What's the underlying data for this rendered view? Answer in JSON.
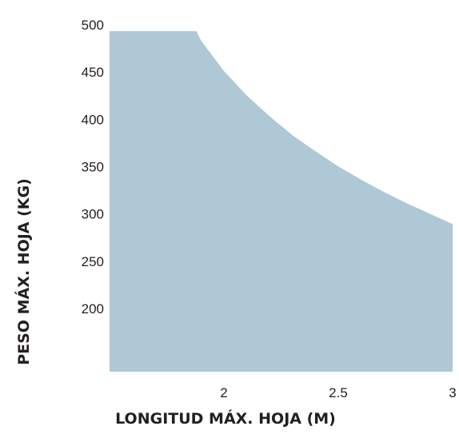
{
  "chart_data": {
    "type": "area",
    "title": "",
    "xlabel": "LONGITUD MÁX. HOJA (M)",
    "ylabel": "PESO MÁX. HOJA (KG)",
    "xlim": [
      1.5,
      3.0
    ],
    "ylim": [
      145,
      500
    ],
    "x_ticks": [
      2,
      2.5,
      3
    ],
    "x_tick_labels": [
      "2",
      "2.5",
      "3"
    ],
    "y_ticks": [
      200,
      250,
      300,
      350,
      400,
      450,
      500
    ],
    "y_tick_labels": [
      "200",
      "250",
      "300",
      "350",
      "400",
      "450",
      "500"
    ],
    "grid": false,
    "legend": "none",
    "fill_color": "#aec8d6",
    "series": [
      {
        "x": [
          1.5,
          1.88,
          1.9,
          2.0,
          2.1,
          2.2,
          2.3,
          2.4,
          2.5,
          2.6,
          2.7,
          2.8,
          2.9,
          3.0
        ],
        "values": [
          500,
          500,
          490,
          458,
          432,
          410,
          390,
          373,
          357,
          343,
          330,
          318,
          307,
          296
        ]
      }
    ]
  }
}
